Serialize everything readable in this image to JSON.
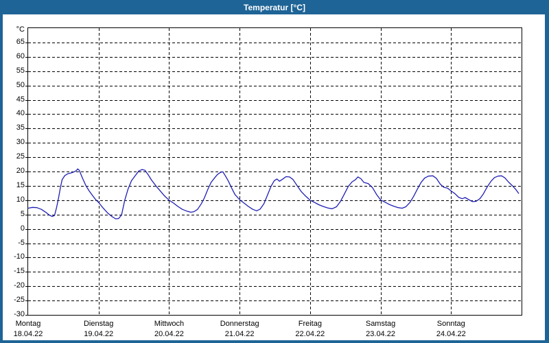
{
  "window": {
    "title": "Temperatur [°C]"
  },
  "colors": {
    "titlebar": "#1e6496",
    "frame": "#1e6496",
    "panel_bg": "#ffffff",
    "plot_border": "#000000",
    "grid": "#000000",
    "label_text": "#000000",
    "title_text": "#ffffff",
    "line": "#1e1eb4"
  },
  "chart_data": {
    "type": "line",
    "title": "Temperatur [°C]",
    "y_unit_label": "°C",
    "ylabel": "",
    "xlabel": "",
    "ylim": [
      -30,
      70
    ],
    "y_ticks": [
      65,
      60,
      55,
      50,
      45,
      40,
      35,
      30,
      25,
      20,
      15,
      10,
      5,
      0,
      -5,
      -10,
      -15,
      -20,
      -25,
      -30
    ],
    "x_range_hours": [
      0,
      168
    ],
    "grid": "dashed-black-both-axes",
    "legend": "none",
    "x_days": [
      {
        "name": "Montag",
        "date": "18.04.22"
      },
      {
        "name": "Dienstag",
        "date": "19.04.22"
      },
      {
        "name": "Mittwoch",
        "date": "20.04.22"
      },
      {
        "name": "Donnerstag",
        "date": "21.04.22"
      },
      {
        "name": "Freitag",
        "date": "22.04.22"
      },
      {
        "name": "Samstag",
        "date": "23.04.22"
      },
      {
        "name": "Sonntag",
        "date": "24.04.22"
      }
    ],
    "series": [
      {
        "name": "Temperatur",
        "color": "#1e1eb4",
        "points": [
          [
            0,
            7.2
          ],
          [
            1.5,
            7.5
          ],
          [
            3,
            7.4
          ],
          [
            4.5,
            6.8
          ],
          [
            6,
            5.8
          ],
          [
            7.2,
            4.8
          ],
          [
            8.2,
            4.3
          ],
          [
            9,
            4.7
          ],
          [
            9.7,
            7.5
          ],
          [
            10.4,
            11.0
          ],
          [
            11,
            14.5
          ],
          [
            11.6,
            17.2
          ],
          [
            12.5,
            18.6
          ],
          [
            13.5,
            19.2
          ],
          [
            14.6,
            19.5
          ],
          [
            15.7,
            19.9
          ],
          [
            16.4,
            20.3
          ],
          [
            16.9,
            20.9
          ],
          [
            17.4,
            20.4
          ],
          [
            18.5,
            17.7
          ],
          [
            19.7,
            15.0
          ],
          [
            20.8,
            13.2
          ],
          [
            22,
            11.5
          ],
          [
            23,
            10.2
          ],
          [
            24,
            9.2
          ],
          [
            25.5,
            7.3
          ],
          [
            27,
            5.6
          ],
          [
            28.5,
            4.3
          ],
          [
            29.8,
            3.5
          ],
          [
            30.8,
            3.6
          ],
          [
            31.8,
            4.8
          ],
          [
            32.9,
            10.0
          ],
          [
            34,
            13.8
          ],
          [
            35.2,
            16.8
          ],
          [
            36.5,
            18.6
          ],
          [
            37.7,
            20.2
          ],
          [
            38.8,
            20.7
          ],
          [
            39.8,
            20.4
          ],
          [
            40.8,
            19.0
          ],
          [
            42,
            17.0
          ],
          [
            43.5,
            15.0
          ],
          [
            45,
            13.2
          ],
          [
            46.5,
            11.4
          ],
          [
            48,
            10.0
          ],
          [
            49.5,
            9.0
          ],
          [
            51,
            7.8
          ],
          [
            52.5,
            6.8
          ],
          [
            54,
            6.2
          ],
          [
            55.4,
            5.8
          ],
          [
            56.5,
            6.0
          ],
          [
            57.7,
            6.8
          ],
          [
            59,
            8.8
          ],
          [
            60,
            10.8
          ],
          [
            61.2,
            13.8
          ],
          [
            62.3,
            16.2
          ],
          [
            63.5,
            17.8
          ],
          [
            64.5,
            19.0
          ],
          [
            65.5,
            19.7
          ],
          [
            66.3,
            19.9
          ],
          [
            67.2,
            18.4
          ],
          [
            68.2,
            16.6
          ],
          [
            69.2,
            14.4
          ],
          [
            70.4,
            12.0
          ],
          [
            72,
            10.2
          ],
          [
            73.5,
            9.0
          ],
          [
            75,
            7.8
          ],
          [
            76.5,
            6.8
          ],
          [
            77.8,
            6.3
          ],
          [
            79,
            6.9
          ],
          [
            80.3,
            8.8
          ],
          [
            81.5,
            11.8
          ],
          [
            82.7,
            14.8
          ],
          [
            83.8,
            16.8
          ],
          [
            84.7,
            17.4
          ],
          [
            85.6,
            16.6
          ],
          [
            86.6,
            17.3
          ],
          [
            87.8,
            18.2
          ],
          [
            89,
            18.1
          ],
          [
            90.2,
            17.2
          ],
          [
            91.5,
            15.2
          ],
          [
            93,
            13.0
          ],
          [
            94.5,
            11.4
          ],
          [
            96,
            10.0
          ],
          [
            97.5,
            9.2
          ],
          [
            99,
            8.4
          ],
          [
            100.5,
            7.8
          ],
          [
            102,
            7.3
          ],
          [
            103.5,
            7.0
          ],
          [
            105,
            7.7
          ],
          [
            106.3,
            9.5
          ],
          [
            107.6,
            12.0
          ],
          [
            109,
            14.8
          ],
          [
            110.3,
            16.4
          ],
          [
            111.4,
            17.1
          ],
          [
            112.3,
            18.1
          ],
          [
            113.3,
            17.5
          ],
          [
            114.3,
            16.2
          ],
          [
            115.8,
            15.8
          ],
          [
            117.3,
            14.3
          ],
          [
            118.7,
            11.9
          ],
          [
            120,
            10.1
          ],
          [
            121.5,
            9.3
          ],
          [
            123,
            8.5
          ],
          [
            124.5,
            7.9
          ],
          [
            126,
            7.4
          ],
          [
            127.4,
            7.2
          ],
          [
            128.6,
            7.7
          ],
          [
            130,
            9.2
          ],
          [
            131.3,
            11.4
          ],
          [
            132.6,
            14.0
          ],
          [
            133.8,
            16.2
          ],
          [
            135,
            17.7
          ],
          [
            136.3,
            18.4
          ],
          [
            137.8,
            18.5
          ],
          [
            139,
            17.6
          ],
          [
            140.3,
            15.6
          ],
          [
            141.5,
            14.5
          ],
          [
            142.8,
            14.2
          ],
          [
            144,
            13.2
          ],
          [
            145.3,
            12.3
          ],
          [
            146.6,
            11.0
          ],
          [
            147.8,
            10.5
          ],
          [
            148.8,
            10.9
          ],
          [
            150,
            10.2
          ],
          [
            151.3,
            9.5
          ],
          [
            152.5,
            9.6
          ],
          [
            153.8,
            10.5
          ],
          [
            155,
            12.2
          ],
          [
            156.3,
            14.6
          ],
          [
            157.6,
            16.6
          ],
          [
            158.8,
            17.9
          ],
          [
            160,
            18.4
          ],
          [
            161.2,
            18.5
          ],
          [
            162.3,
            17.8
          ],
          [
            163.6,
            16.3
          ],
          [
            165,
            14.9
          ],
          [
            166,
            13.8
          ],
          [
            167,
            12.4
          ]
        ]
      }
    ]
  }
}
